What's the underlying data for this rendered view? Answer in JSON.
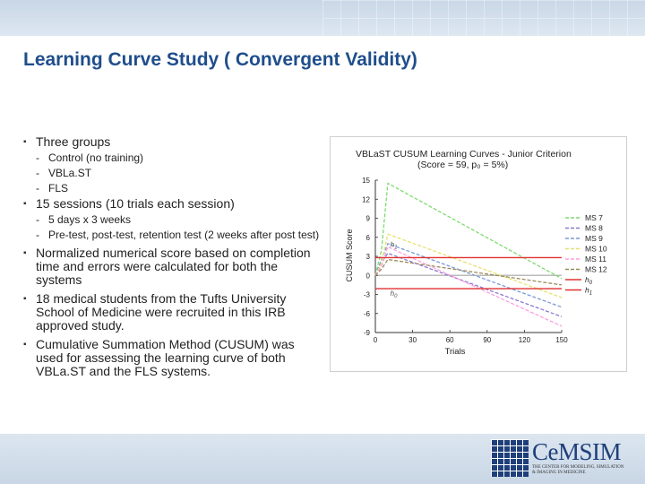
{
  "slide": {
    "title": "Learning Curve Study ( Convergent Validity)"
  },
  "bullets": [
    {
      "text": "Three groups",
      "sub": [
        "Control (no training)",
        "VBLa.ST",
        "FLS"
      ]
    },
    {
      "text": "15 sessions (10 trials each session)",
      "sub": [
        "5 days x 3 weeks",
        "Pre-test, post-test, retention test (2 weeks after post test)"
      ]
    },
    {
      "text": "Normalized numerical score based on completion time and errors were calculated for both the systems",
      "sub": []
    },
    {
      "text": "18 medical students from the Tufts University School of Medicine were recruited in this IRB approved study.",
      "sub": []
    },
    {
      "text": "Cumulative Summation Method (CUSUM) was used for assessing the learning curve of both VBLa.ST and the FLS systems.",
      "sub": []
    }
  ],
  "logo": {
    "name": "CeMSIM",
    "subtitle_line1": "THE CENTER FOR MODELING, SIMULATION",
    "subtitle_line2": "& IMAGING IN MEDICINE"
  },
  "chart_data": {
    "type": "line",
    "title": "VBLaST CUSUM Learning Curves - Junior Criterion",
    "subtitle": "(Score = 59, p₀ = 5%)",
    "xlabel": "Trials",
    "ylabel": "CUSUM Score",
    "xlim": [
      0,
      150
    ],
    "ylim": [
      -9,
      15
    ],
    "x_ticks": [
      "0",
      "30",
      "60",
      "90",
      "120",
      "150"
    ],
    "y_ticks": [
      "15",
      "12",
      "9",
      "6",
      "3",
      "0",
      "-3",
      "-6",
      "-9"
    ],
    "grid": false,
    "legend_position": "right",
    "series": [
      {
        "name": "MS 7",
        "color": "#7ddc6e",
        "dashed": true,
        "points": [
          [
            0,
            0
          ],
          [
            5,
            4
          ],
          [
            10,
            14.5
          ],
          [
            150,
            -0.5
          ]
        ]
      },
      {
        "name": "MS 8",
        "color": "#8a7ad0",
        "dashed": true,
        "points": [
          [
            0,
            0
          ],
          [
            5,
            2
          ],
          [
            10,
            3.5
          ],
          [
            150,
            -6.5
          ]
        ]
      },
      {
        "name": "MS 9",
        "color": "#7a9ad8",
        "dashed": true,
        "points": [
          [
            0,
            0
          ],
          [
            5,
            2.5
          ],
          [
            10,
            5
          ],
          [
            150,
            -5
          ]
        ]
      },
      {
        "name": "MS 10",
        "color": "#e7e070",
        "dashed": true,
        "points": [
          [
            0,
            0
          ],
          [
            5,
            2
          ],
          [
            10,
            6.5
          ],
          [
            150,
            -3.5
          ]
        ]
      },
      {
        "name": "MS 11",
        "color": "#ff9ee0",
        "dashed": true,
        "points": [
          [
            0,
            0
          ],
          [
            5,
            1.5
          ],
          [
            10,
            4.5
          ],
          [
            150,
            -8
          ]
        ]
      },
      {
        "name": "MS 12",
        "color": "#9a8a5a",
        "dashed": true,
        "points": [
          [
            0,
            0
          ],
          [
            5,
            1
          ],
          [
            10,
            2.5
          ],
          [
            150,
            -1.5
          ]
        ]
      },
      {
        "name": "h0",
        "legend_label": "h",
        "legend_sub": "0",
        "color": "#e03030",
        "dashed": false,
        "points": [
          [
            0,
            2.8
          ],
          [
            150,
            2.8
          ]
        ]
      },
      {
        "name": "h1",
        "legend_label": "h",
        "legend_sub": "1",
        "color": "#e03030",
        "dashed": false,
        "points": [
          [
            0,
            -2.1
          ],
          [
            150,
            -2.1
          ]
        ]
      }
    ],
    "reference_line": {
      "y": 0,
      "color": "#bbbbbb"
    },
    "annotations": [
      {
        "label": "h",
        "sub": "1",
        "x": 12,
        "y": 4.5
      },
      {
        "label": "h",
        "sub": "0",
        "x": 12,
        "y": -3.2
      }
    ]
  }
}
